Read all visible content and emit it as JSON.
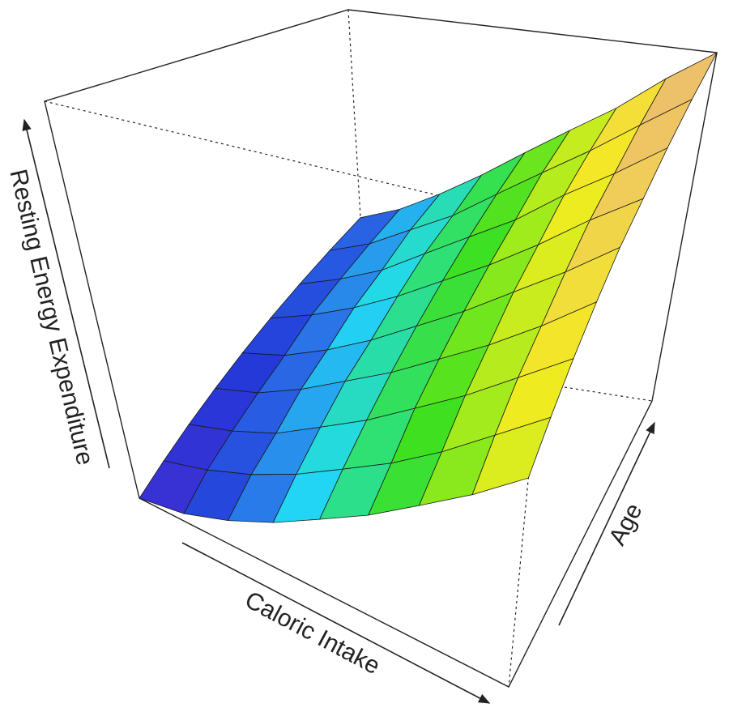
{
  "chart_data": {
    "type": "surface",
    "xlabel": "Caloric Intake",
    "ylabel": "Age",
    "zlabel": "Resting Energy Expenditure",
    "x": [
      0,
      0.125,
      0.25,
      0.375,
      0.5,
      0.625,
      0.75,
      0.875,
      1
    ],
    "y": [
      0,
      0.125,
      0.25,
      0.375,
      0.5,
      0.625,
      0.75,
      0.875,
      1
    ],
    "z": [
      [
        0,
        0.02,
        0.06,
        0.11,
        0.17,
        0.23,
        0.3,
        0.37,
        0.45
      ],
      [
        0.05,
        0.08,
        0.12,
        0.17,
        0.23,
        0.29,
        0.36,
        0.44,
        0.52
      ],
      [
        0.1,
        0.13,
        0.17,
        0.23,
        0.29,
        0.36,
        0.43,
        0.51,
        0.59
      ],
      [
        0.15,
        0.18,
        0.23,
        0.29,
        0.35,
        0.42,
        0.49,
        0.57,
        0.66
      ],
      [
        0.2,
        0.23,
        0.28,
        0.34,
        0.41,
        0.48,
        0.56,
        0.64,
        0.73
      ],
      [
        0.25,
        0.29,
        0.34,
        0.4,
        0.47,
        0.54,
        0.62,
        0.71,
        0.79
      ],
      [
        0.3,
        0.34,
        0.39,
        0.46,
        0.53,
        0.6,
        0.69,
        0.77,
        0.86
      ],
      [
        0.35,
        0.39,
        0.45,
        0.51,
        0.59,
        0.67,
        0.75,
        0.84,
        0.93
      ],
      [
        0.4,
        0.44,
        0.5,
        0.57,
        0.65,
        0.73,
        0.81,
        0.91,
        1
      ]
    ],
    "xlim": [
      0,
      1
    ],
    "ylim": [
      0,
      1
    ],
    "zlim": [
      0,
      1
    ],
    "colorscale": [
      "#4a2ad0",
      "#2438d8",
      "#2a70e8",
      "#22d8f4",
      "#2ee07a",
      "#3ee020",
      "#a8ec1c",
      "#f4ec20",
      "#f0c860",
      "#e8b27a"
    ]
  }
}
